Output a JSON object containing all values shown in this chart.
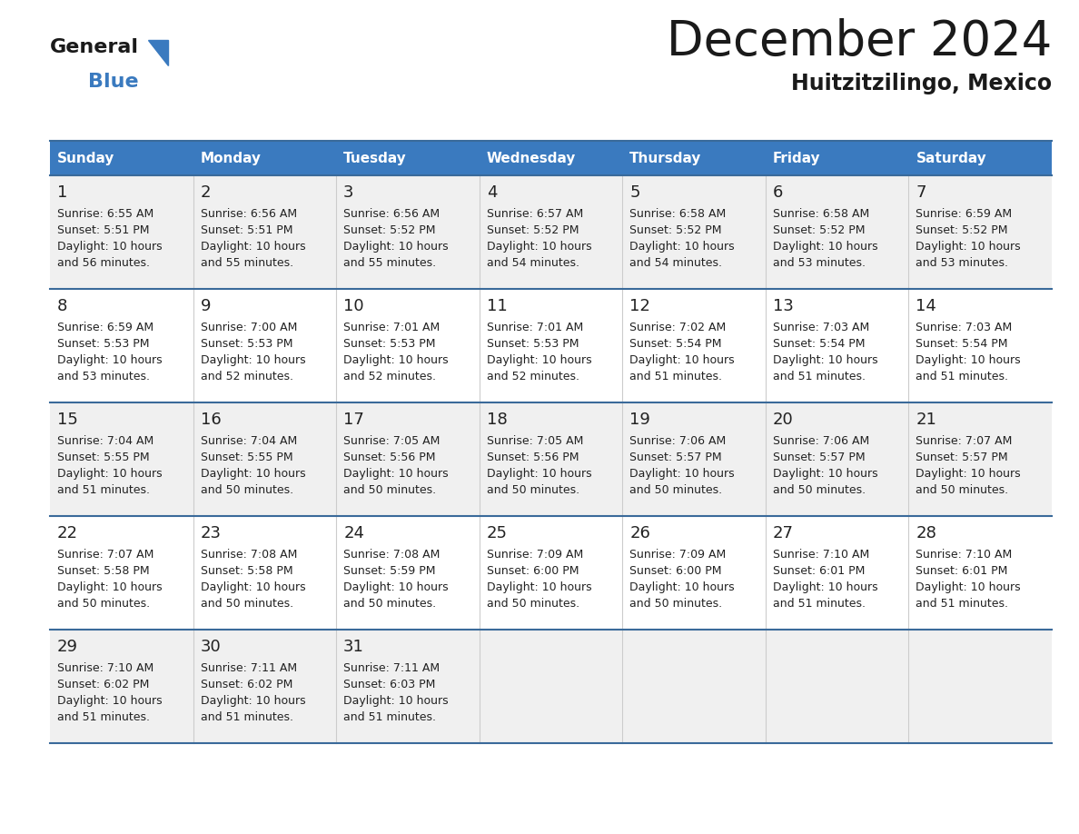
{
  "title": "December 2024",
  "subtitle": "Huitzitzilingo, Mexico",
  "header_color": "#3a7abf",
  "header_text_color": "#ffffff",
  "bg_color": "#ffffff",
  "row_bg_even": "#f0f0f0",
  "row_bg_odd": "#ffffff",
  "text_color": "#222222",
  "border_color": "#3a6a9a",
  "col_sep_color": "#cccccc",
  "days_of_week": [
    "Sunday",
    "Monday",
    "Tuesday",
    "Wednesday",
    "Thursday",
    "Friday",
    "Saturday"
  ],
  "weeks": [
    [
      {
        "day": 1,
        "sunrise": "6:55 AM",
        "sunset": "5:51 PM",
        "daylight_hours": 10,
        "daylight_minutes": 56
      },
      {
        "day": 2,
        "sunrise": "6:56 AM",
        "sunset": "5:51 PM",
        "daylight_hours": 10,
        "daylight_minutes": 55
      },
      {
        "day": 3,
        "sunrise": "6:56 AM",
        "sunset": "5:52 PM",
        "daylight_hours": 10,
        "daylight_minutes": 55
      },
      {
        "day": 4,
        "sunrise": "6:57 AM",
        "sunset": "5:52 PM",
        "daylight_hours": 10,
        "daylight_minutes": 54
      },
      {
        "day": 5,
        "sunrise": "6:58 AM",
        "sunset": "5:52 PM",
        "daylight_hours": 10,
        "daylight_minutes": 54
      },
      {
        "day": 6,
        "sunrise": "6:58 AM",
        "sunset": "5:52 PM",
        "daylight_hours": 10,
        "daylight_minutes": 53
      },
      {
        "day": 7,
        "sunrise": "6:59 AM",
        "sunset": "5:52 PM",
        "daylight_hours": 10,
        "daylight_minutes": 53
      }
    ],
    [
      {
        "day": 8,
        "sunrise": "6:59 AM",
        "sunset": "5:53 PM",
        "daylight_hours": 10,
        "daylight_minutes": 53
      },
      {
        "day": 9,
        "sunrise": "7:00 AM",
        "sunset": "5:53 PM",
        "daylight_hours": 10,
        "daylight_minutes": 52
      },
      {
        "day": 10,
        "sunrise": "7:01 AM",
        "sunset": "5:53 PM",
        "daylight_hours": 10,
        "daylight_minutes": 52
      },
      {
        "day": 11,
        "sunrise": "7:01 AM",
        "sunset": "5:53 PM",
        "daylight_hours": 10,
        "daylight_minutes": 52
      },
      {
        "day": 12,
        "sunrise": "7:02 AM",
        "sunset": "5:54 PM",
        "daylight_hours": 10,
        "daylight_minutes": 51
      },
      {
        "day": 13,
        "sunrise": "7:03 AM",
        "sunset": "5:54 PM",
        "daylight_hours": 10,
        "daylight_minutes": 51
      },
      {
        "day": 14,
        "sunrise": "7:03 AM",
        "sunset": "5:54 PM",
        "daylight_hours": 10,
        "daylight_minutes": 51
      }
    ],
    [
      {
        "day": 15,
        "sunrise": "7:04 AM",
        "sunset": "5:55 PM",
        "daylight_hours": 10,
        "daylight_minutes": 51
      },
      {
        "day": 16,
        "sunrise": "7:04 AM",
        "sunset": "5:55 PM",
        "daylight_hours": 10,
        "daylight_minutes": 50
      },
      {
        "day": 17,
        "sunrise": "7:05 AM",
        "sunset": "5:56 PM",
        "daylight_hours": 10,
        "daylight_minutes": 50
      },
      {
        "day": 18,
        "sunrise": "7:05 AM",
        "sunset": "5:56 PM",
        "daylight_hours": 10,
        "daylight_minutes": 50
      },
      {
        "day": 19,
        "sunrise": "7:06 AM",
        "sunset": "5:57 PM",
        "daylight_hours": 10,
        "daylight_minutes": 50
      },
      {
        "day": 20,
        "sunrise": "7:06 AM",
        "sunset": "5:57 PM",
        "daylight_hours": 10,
        "daylight_minutes": 50
      },
      {
        "day": 21,
        "sunrise": "7:07 AM",
        "sunset": "5:57 PM",
        "daylight_hours": 10,
        "daylight_minutes": 50
      }
    ],
    [
      {
        "day": 22,
        "sunrise": "7:07 AM",
        "sunset": "5:58 PM",
        "daylight_hours": 10,
        "daylight_minutes": 50
      },
      {
        "day": 23,
        "sunrise": "7:08 AM",
        "sunset": "5:58 PM",
        "daylight_hours": 10,
        "daylight_minutes": 50
      },
      {
        "day": 24,
        "sunrise": "7:08 AM",
        "sunset": "5:59 PM",
        "daylight_hours": 10,
        "daylight_minutes": 50
      },
      {
        "day": 25,
        "sunrise": "7:09 AM",
        "sunset": "6:00 PM",
        "daylight_hours": 10,
        "daylight_minutes": 50
      },
      {
        "day": 26,
        "sunrise": "7:09 AM",
        "sunset": "6:00 PM",
        "daylight_hours": 10,
        "daylight_minutes": 50
      },
      {
        "day": 27,
        "sunrise": "7:10 AM",
        "sunset": "6:01 PM",
        "daylight_hours": 10,
        "daylight_minutes": 51
      },
      {
        "day": 28,
        "sunrise": "7:10 AM",
        "sunset": "6:01 PM",
        "daylight_hours": 10,
        "daylight_minutes": 51
      }
    ],
    [
      {
        "day": 29,
        "sunrise": "7:10 AM",
        "sunset": "6:02 PM",
        "daylight_hours": 10,
        "daylight_minutes": 51
      },
      {
        "day": 30,
        "sunrise": "7:11 AM",
        "sunset": "6:02 PM",
        "daylight_hours": 10,
        "daylight_minutes": 51
      },
      {
        "day": 31,
        "sunrise": "7:11 AM",
        "sunset": "6:03 PM",
        "daylight_hours": 10,
        "daylight_minutes": 51
      },
      null,
      null,
      null,
      null
    ]
  ]
}
